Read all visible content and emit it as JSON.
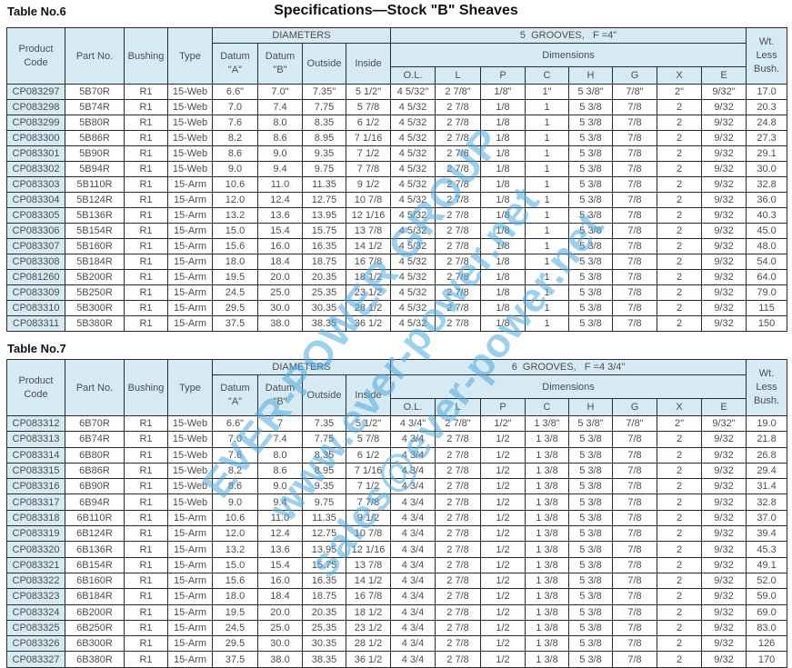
{
  "page": {
    "title": "Specifications—Stock \"B\" Sheaves"
  },
  "colors": {
    "header_bg": "#d6eaf4",
    "border": "#2a2a2a",
    "text": "#4d4d4d",
    "title_text": "#111111",
    "watermark": "#4fa8de"
  },
  "watermark": {
    "lines": [
      "EVER-POWER GROUP",
      "www.ever-power.net",
      "sales@ever-power.net"
    ]
  },
  "headers": {
    "product_code": "Product\nCode",
    "part_no": "Part No.",
    "bushing": "Bushing",
    "type": "Type",
    "diameters": "DIAMETERS",
    "datum_a": "Datum\n\"A\"",
    "datum_b": "Datum\n\"B\"",
    "outside": "Outside",
    "inside": "Inside",
    "dimensions": "Dimensions",
    "dim_letters": [
      "O.L.",
      "L",
      "P",
      "C",
      "H",
      "G",
      "X",
      "E"
    ],
    "wt": "Wt.\nLess\nBush."
  },
  "tables": [
    {
      "label": "Table No.6",
      "grooves_title": "5  GROOVES,   F =4\"",
      "rows": [
        [
          "CP083297",
          "5B70R",
          "R1",
          "15-Web",
          "6.6\"",
          "7.0\"",
          "7.35\"",
          "5 1/2\"",
          "4 5/32\"",
          "2 7/8\"",
          "1/8\"",
          "1\"",
          "5 3/8\"",
          "7/8\"",
          "2\"",
          "9/32\"",
          "17.0"
        ],
        [
          "CP083298",
          "5B74R",
          "R1",
          "15-Web",
          "7.0",
          "7.4",
          "7.75",
          "5 7/8",
          "4 5/32",
          "2 7/8",
          "1/8",
          "1",
          "5 3/8",
          "7/8",
          "2",
          "9/32",
          "20.3"
        ],
        [
          "CP083299",
          "5B80R",
          "R1",
          "15-Web",
          "7.6",
          "8.0",
          "8.35",
          "6 1/2",
          "4 5/32",
          "2 7/8",
          "1/8",
          "1",
          "5 3/8",
          "7/8",
          "2",
          "9/32",
          "24.8"
        ],
        [
          "CP083300",
          "5B86R",
          "R1",
          "15-Web",
          "8.2",
          "8.6",
          "8.95",
          "7 1/16",
          "4 5/32",
          "2 7/8",
          "1/8",
          "1",
          "5 3/8",
          "7/8",
          "2",
          "9/32",
          "27.3"
        ],
        [
          "CP083301",
          "5B90R",
          "R1",
          "15-Web",
          "8.6",
          "9.0",
          "9.35",
          "7 1/2",
          "4 5/32",
          "2 7/8",
          "1/8",
          "1",
          "5 3/8",
          "7/8",
          "2",
          "9/32",
          "29.1"
        ],
        [
          "CP083302",
          "5B94R",
          "R1",
          "15-Web",
          "9.0",
          "9.4",
          "9.75",
          "7 7/8",
          "4 5/32",
          "2 7/8",
          "1/8",
          "1",
          "5 3/8",
          "7/8",
          "2",
          "9/32",
          "30.0"
        ],
        [
          "CP083303",
          "5B110R",
          "R1",
          "15-Arm",
          "10.6",
          "11.0",
          "11.35",
          "9 1/2",
          "4 5/32",
          "2 7/8",
          "1/8",
          "1",
          "5 3/8",
          "7/8",
          "2",
          "9/32",
          "32.8"
        ],
        [
          "CP083304",
          "5B124R",
          "R1",
          "15-Arm",
          "12.0",
          "12.4",
          "12.75",
          "10 7/8",
          "4 5/32",
          "2 7/8",
          "1/8",
          "1",
          "5 3/8",
          "7/8",
          "2",
          "9/32",
          "36.0"
        ],
        [
          "CP083305",
          "5B136R",
          "R1",
          "15-Arm",
          "13.2",
          "13.6",
          "13.95",
          "12 1/16",
          "4 5/32",
          "2 7/8",
          "1/8",
          "1",
          "5 3/8",
          "7/8",
          "2",
          "9/32",
          "40.3"
        ],
        [
          "CP083306",
          "5B154R",
          "R1",
          "15-Arm",
          "15.0",
          "15.4",
          "15.75",
          "13 7/8",
          "4 5/32",
          "2 7/8",
          "1/8",
          "1",
          "5 3/8",
          "7/8",
          "2",
          "9/32",
          "45.0"
        ],
        [
          "CP083307",
          "5B160R",
          "R1",
          "15-Arm",
          "15.6",
          "16.0",
          "16.35",
          "14 1/2",
          "4 5/32",
          "2 7/8",
          "1/8",
          "1",
          "5 3/8",
          "7/8",
          "2",
          "9/32",
          "48.0"
        ],
        [
          "CP083308",
          "5B184R",
          "R1",
          "15-Arm",
          "18.0",
          "18.4",
          "18.75",
          "16 7/8",
          "4 5/32",
          "2 7/8",
          "1/8",
          "1",
          "5 3/8",
          "7/8",
          "2",
          "9/32",
          "54.0"
        ],
        [
          "CP081260",
          "5B200R",
          "R1",
          "15-Arm",
          "19.5",
          "20.0",
          "20.35",
          "18 1/2",
          "4 5/32",
          "2 7/8",
          "1/8",
          "1",
          "5 3/8",
          "7/8",
          "2",
          "9/32",
          "64.0"
        ],
        [
          "CP083309",
          "5B250R",
          "R1",
          "15-Arm",
          "24.5",
          "25.0",
          "25.35",
          "23 1/2",
          "4 5/32",
          "2 7/8",
          "1/8",
          "1",
          "5 3/8",
          "7/8",
          "2",
          "9/32",
          "79.0"
        ],
        [
          "CP083310",
          "5B300R",
          "R1",
          "15-Arm",
          "29.5",
          "30.0",
          "30.35",
          "28 1/2",
          "4 5/32",
          "2 7/8",
          "1/8",
          "1",
          "5 3/8",
          "7/8",
          "2",
          "9/32",
          "115"
        ],
        [
          "CP083311",
          "5B380R",
          "R1",
          "15-Arm",
          "37.5",
          "38.0",
          "38.35",
          "36 1/2",
          "4 5/32",
          "2 7/8",
          "1/8",
          "1",
          "5 3/8",
          "7/8",
          "2",
          "9/32",
          "150"
        ]
      ]
    },
    {
      "label": "Table No.7",
      "grooves_title": "6  GROOVES,   F =4 3/4\"",
      "rows": [
        [
          "CP083312",
          "6B70R",
          "R1",
          "15-Web",
          "6.6\"",
          "7",
          "7.35",
          "5 1/2\"",
          "4 3/4\"",
          "2 7/8\"",
          "1/2\"",
          "1 3/8\"",
          "5 3/8\"",
          "7/8\"",
          "2\"",
          "9/32\"",
          "19.0"
        ],
        [
          "CP083313",
          "6B74R",
          "R1",
          "15-Web",
          "7.0",
          "7.4",
          "7.75",
          "5 7/8",
          "4 3/4",
          "2 7/8",
          "1/2",
          "1 3/8",
          "5 3/8",
          "7/8",
          "2",
          "9/32",
          "21.8"
        ],
        [
          "CP083314",
          "6B80R",
          "R1",
          "15-Web",
          "7.6",
          "8.0",
          "8.35",
          "6 1/2",
          "4 3/4",
          "2 7/8",
          "1/2",
          "1 3/8",
          "5 3/8",
          "7/8",
          "2",
          "9/32",
          "26.8"
        ],
        [
          "CP083315",
          "6B86R",
          "R1",
          "15-Web",
          "8.2",
          "8.6",
          "8.95",
          "7 1/16",
          "4 3/4",
          "2 7/8",
          "1/2",
          "1 3/8",
          "5 3/8",
          "7/8",
          "2",
          "9/32",
          "29.4"
        ],
        [
          "CP083316",
          "6B90R",
          "R1",
          "15-Web",
          "8.6",
          "9.0",
          "9.35",
          "7 1/2",
          "4 3/4",
          "2 7/8",
          "1/2",
          "1 3/8",
          "5 3/8",
          "7/8",
          "2",
          "9/32",
          "31.4"
        ],
        [
          "CP083317",
          "6B94R",
          "R1",
          "15-Web",
          "9.0",
          "9.4",
          "9.75",
          "7 7/8",
          "4 3/4",
          "2 7/8",
          "1/2",
          "1 3/8",
          "5 3/8",
          "7/8",
          "2",
          "9/32",
          "32.8"
        ],
        [
          "CP083318",
          "6B110R",
          "R1",
          "15-Arm",
          "10.6",
          "11.0",
          "11.35",
          "9 1/2",
          "4 3/4",
          "2 7/8",
          "1/2",
          "1 3/8",
          "5 3/8",
          "7/8",
          "2",
          "9/32",
          "37.0"
        ],
        [
          "CP083319",
          "6B124R",
          "R1",
          "15-Arm",
          "12.0",
          "12.4",
          "12.75",
          "10 7/8",
          "4 3/4",
          "2 7/8",
          "1/2",
          "1 3/8",
          "5 3/8",
          "7/8",
          "2",
          "9/32",
          "39.4"
        ],
        [
          "CP083320",
          "6B136R",
          "R1",
          "15-Arm",
          "13.2",
          "13.6",
          "13.95",
          "12 1/16",
          "4 3/4",
          "2 7/8",
          "1/2",
          "1 3/8",
          "5 3/8",
          "7/8",
          "2",
          "9/32",
          "45.3"
        ],
        [
          "CP083321",
          "6B154R",
          "R1",
          "15-Arm",
          "15.0",
          "15.4",
          "15.75",
          "13 7/8",
          "4 3/4",
          "2 7/8",
          "1/2",
          "1 3/8",
          "5 3/8",
          "7/8",
          "2",
          "9/32",
          "49.1"
        ],
        [
          "CP083322",
          "6B160R",
          "R1",
          "15-Arm",
          "15.6",
          "16.0",
          "16.35",
          "14 1/2",
          "4 3/4",
          "2 7/8",
          "1/2",
          "1 3/8",
          "5 3/8",
          "7/8",
          "2",
          "9/32",
          "52.0"
        ],
        [
          "CP083323",
          "6B184R",
          "R1",
          "15-Arm",
          "18.0",
          "18.4",
          "18.75",
          "16 7/8",
          "4 3/4",
          "2 7/8",
          "1/2",
          "1 3/8",
          "5 3/8",
          "7/8",
          "2",
          "9/32",
          "59.0"
        ],
        [
          "CP083324",
          "6B200R",
          "R1",
          "15-Arm",
          "19.5",
          "20.0",
          "20.35",
          "18 1/2",
          "4 3/4",
          "2 7/8",
          "1/2",
          "1 3/8",
          "5 3/8",
          "7/8",
          "2",
          "9/32",
          "69.0"
        ],
        [
          "CP083325",
          "6B250R",
          "R1",
          "15-Arm",
          "24.5",
          "25.0",
          "25.35",
          "23 1/2",
          "4 3/4",
          "2 7/8",
          "1/2",
          "1 3/8",
          "5 3/8",
          "7/8",
          "2",
          "9/32",
          "83.0"
        ],
        [
          "CP083326",
          "6B300R",
          "R1",
          "15-Arm",
          "29.5",
          "30.0",
          "30.35",
          "28 1/2",
          "4 3/4",
          "2 7/8",
          "1/2",
          "1 3/8",
          "5 3/8",
          "7/8",
          "2",
          "9/32",
          "126"
        ],
        [
          "CP083327",
          "6B380R",
          "R1",
          "15-Arm",
          "37.5",
          "38.0",
          "38.35",
          "36 1/2",
          "4 3/4",
          "2 7/8",
          "1/2",
          "1 3/8",
          "5 3/8",
          "7/8",
          "2",
          "9/32",
          "170"
        ]
      ]
    }
  ]
}
